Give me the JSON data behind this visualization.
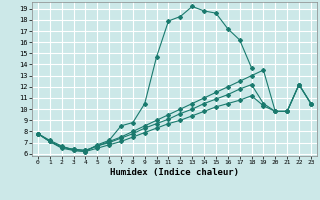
{
  "xlabel": "Humidex (Indice chaleur)",
  "background_color": "#cce8e8",
  "grid_color": "#ffffff",
  "line_color": "#1a7a6e",
  "xlim": [
    -0.5,
    23.5
  ],
  "ylim": [
    5.8,
    19.6
  ],
  "xticks": [
    0,
    1,
    2,
    3,
    4,
    5,
    6,
    7,
    8,
    9,
    10,
    11,
    12,
    13,
    14,
    15,
    16,
    17,
    18,
    19,
    20,
    21,
    22,
    23
  ],
  "yticks": [
    6,
    7,
    8,
    9,
    10,
    11,
    12,
    13,
    14,
    15,
    16,
    17,
    18,
    19
  ],
  "line1_x": [
    0,
    1,
    2,
    3,
    4,
    5,
    6,
    7,
    8,
    9,
    10,
    11,
    12,
    13,
    14,
    15,
    16,
    17,
    18
  ],
  "line1_y": [
    7.8,
    7.2,
    6.7,
    6.3,
    6.2,
    6.8,
    7.2,
    8.5,
    8.8,
    10.5,
    14.7,
    17.9,
    18.3,
    19.2,
    18.8,
    18.6,
    17.2,
    16.2,
    13.7
  ],
  "line2_x": [
    0,
    1,
    2,
    3,
    4,
    5,
    6,
    7,
    8,
    9,
    10,
    11,
    12,
    13,
    14,
    15,
    16,
    17,
    18,
    19,
    20,
    21,
    22,
    23
  ],
  "line2_y": [
    7.8,
    7.1,
    6.6,
    6.4,
    6.3,
    6.7,
    7.1,
    7.5,
    8.0,
    8.5,
    9.0,
    9.5,
    10.0,
    10.5,
    11.0,
    11.5,
    12.0,
    12.5,
    13.0,
    13.5,
    9.8,
    9.8,
    12.2,
    10.5
  ],
  "line3_x": [
    0,
    1,
    2,
    3,
    4,
    5,
    6,
    7,
    8,
    9,
    10,
    11,
    12,
    13,
    14,
    15,
    16,
    17,
    18,
    19,
    20,
    21,
    22,
    23
  ],
  "line3_y": [
    7.8,
    7.1,
    6.6,
    6.4,
    6.3,
    6.7,
    7.0,
    7.4,
    7.8,
    8.3,
    8.7,
    9.1,
    9.6,
    10.0,
    10.5,
    10.9,
    11.3,
    11.8,
    12.2,
    10.5,
    9.8,
    9.8,
    12.2,
    10.5
  ],
  "line4_x": [
    0,
    1,
    2,
    3,
    4,
    5,
    6,
    7,
    8,
    9,
    10,
    11,
    12,
    13,
    14,
    15,
    16,
    17,
    18,
    19,
    20,
    21,
    22,
    23
  ],
  "line4_y": [
    7.8,
    7.1,
    6.5,
    6.3,
    6.2,
    6.5,
    6.8,
    7.1,
    7.5,
    7.9,
    8.3,
    8.7,
    9.0,
    9.4,
    9.8,
    10.2,
    10.5,
    10.8,
    11.2,
    10.3,
    9.8,
    9.8,
    12.2,
    10.5
  ]
}
